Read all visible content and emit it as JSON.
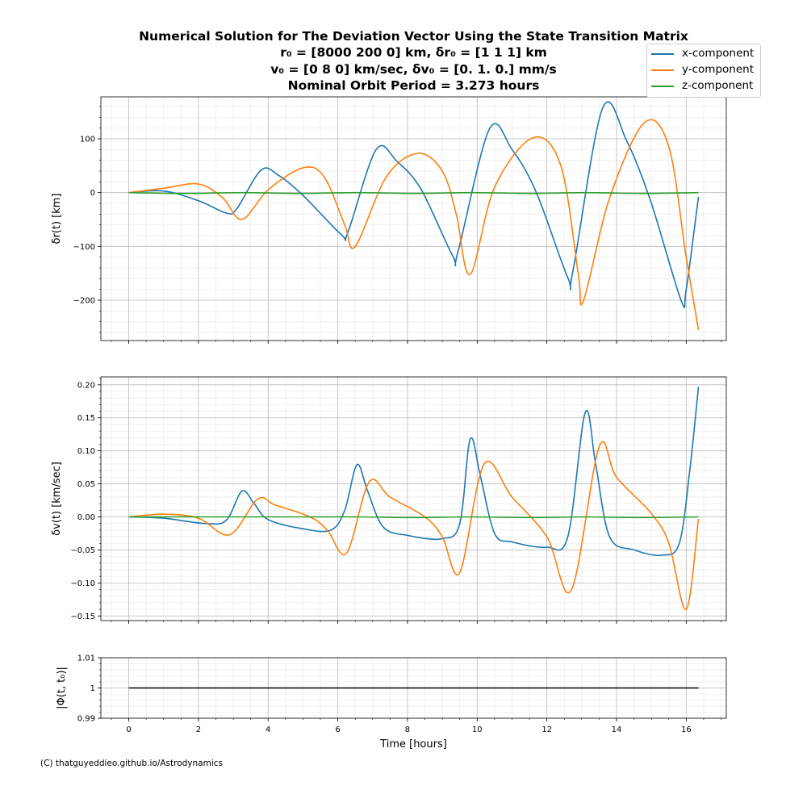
{
  "title_lines": [
    "Numerical Solution for The Deviation Vector Using the State Transition Matrix",
    "r₀ = [8000  200    0] km, δr₀ = [1 1 1] km",
    "v₀ = [0 8 0] km/sec, δv₀ = [0. 1. 0.] mm/s",
    "Nominal Orbit Period = 3.273 hours"
  ],
  "credit": "(C) thatguyeddieo.github.io/Astrodynamics",
  "legend": [
    {
      "label": "x-component",
      "color": "#1f77b4"
    },
    {
      "label": "y-component",
      "color": "#ff7f0e"
    },
    {
      "label": "z-component",
      "color": "#2ca02c"
    }
  ],
  "chart_data": [
    {
      "type": "line",
      "ylabel": "δr(t) [km]",
      "xlim": [
        -0.8,
        17.15
      ],
      "ylim": [
        -275,
        178
      ],
      "xticks": [
        0,
        2,
        4,
        6,
        8,
        10,
        12,
        14,
        16
      ],
      "yticks": [
        -200,
        -100,
        0,
        100
      ],
      "grid": true,
      "series": [
        {
          "name": "x-component",
          "color": "#1f77b4",
          "x": [
            0,
            1,
            2,
            2.8,
            3.1,
            3.8,
            4.3,
            5,
            6.1,
            6.3,
            7.1,
            7.7,
            8.4,
            9.3,
            9.45,
            10.35,
            11.0,
            11.7,
            12.6,
            12.75,
            13.6,
            14.3,
            15.0,
            15.85,
            16.0,
            16.35
          ],
          "y": [
            0,
            3,
            -15,
            -38,
            -30,
            42,
            32,
            -5,
            -78,
            -72,
            80,
            58,
            5,
            -118,
            -110,
            118,
            80,
            0,
            -158,
            -145,
            157,
            95,
            -20,
            -200,
            -180,
            -8
          ]
        },
        {
          "name": "y-component",
          "color": "#ff7f0e",
          "x": [
            0,
            1,
            2,
            2.7,
            3.25,
            4,
            5,
            5.6,
            6.2,
            6.5,
            7.4,
            8.3,
            9.0,
            9.4,
            9.8,
            10.5,
            11.6,
            12.4,
            12.9,
            13.05,
            13.8,
            14.8,
            15.5,
            16.0,
            16.35
          ],
          "y": [
            0,
            8,
            16,
            -10,
            -50,
            5,
            46,
            30,
            -60,
            -100,
            30,
            73,
            40,
            -40,
            -152,
            10,
            102,
            50,
            -150,
            -201,
            -10,
            130,
            85,
            -120,
            -255
          ]
        },
        {
          "name": "z-component",
          "color": "#2ca02c",
          "x": [
            0,
            1.6,
            3.27,
            4.9,
            6.55,
            8.2,
            9.82,
            11.5,
            13.1,
            14.7,
            16.35
          ],
          "y": [
            0,
            -1.5,
            0,
            -1.5,
            0,
            -1.5,
            0,
            -1.5,
            0,
            -1.5,
            0
          ]
        }
      ]
    },
    {
      "type": "line",
      "ylabel": "δv(t) [km/sec]",
      "xlim": [
        -0.8,
        17.15
      ],
      "ylim": [
        -0.157,
        0.212
      ],
      "xticks": [
        0,
        2,
        4,
        6,
        8,
        10,
        12,
        14,
        16
      ],
      "yticks": [
        -0.15,
        -0.1,
        -0.05,
        0.0,
        0.05,
        0.1,
        0.15,
        0.2
      ],
      "ytick_labels": [
        "−0.15",
        "−0.10",
        "−0.05",
        "0.00",
        "0.05",
        "0.10",
        "0.15",
        "0.20"
      ],
      "grid": true,
      "series": [
        {
          "name": "x-component",
          "color": "#1f77b4",
          "x": [
            0,
            1,
            2.2,
            2.8,
            3.25,
            3.6,
            4.0,
            5.0,
            5.8,
            6.2,
            6.55,
            6.85,
            7.3,
            8.0,
            9.0,
            9.5,
            9.8,
            10.1,
            10.5,
            11.0,
            12.0,
            12.6,
            13.1,
            13.4,
            13.8,
            14.5,
            15.3,
            15.8,
            16.1,
            16.35
          ],
          "y": [
            0,
            -0.002,
            -0.01,
            -0.005,
            0.039,
            0.02,
            -0.004,
            -0.018,
            -0.02,
            0.01,
            0.079,
            0.04,
            -0.015,
            -0.028,
            -0.033,
            -0.01,
            0.118,
            0.06,
            -0.025,
            -0.038,
            -0.046,
            -0.03,
            0.158,
            0.08,
            -0.03,
            -0.05,
            -0.058,
            -0.04,
            0.07,
            0.197
          ]
        },
        {
          "name": "y-component",
          "color": "#ff7f0e",
          "x": [
            0,
            1.0,
            2.0,
            2.9,
            3.7,
            4.2,
            5.2,
            5.7,
            6.25,
            6.9,
            7.5,
            8.5,
            9.0,
            9.5,
            10.2,
            11.0,
            12.0,
            12.7,
            13.5,
            14.0,
            15.0,
            15.5,
            16.0,
            16.35
          ],
          "y": [
            0,
            0.004,
            -0.002,
            -0.027,
            0.027,
            0.018,
            0.0,
            -0.02,
            -0.055,
            0.053,
            0.03,
            0.0,
            -0.03,
            -0.084,
            0.08,
            0.03,
            -0.03,
            -0.111,
            0.106,
            0.06,
            0.005,
            -0.04,
            -0.14,
            -0.003
          ]
        },
        {
          "name": "z-component",
          "color": "#2ca02c",
          "x": [
            0,
            1.6,
            3.27,
            4.9,
            6.55,
            8.2,
            9.82,
            11.5,
            13.1,
            14.7,
            16.35
          ],
          "y": [
            0,
            0,
            0,
            0,
            0,
            -0.001,
            0,
            -0.001,
            0,
            -0.001,
            0
          ]
        }
      ]
    },
    {
      "type": "line",
      "ylabel": "|Φ(t, t₀)|",
      "xlabel": "Time [hours]",
      "xlim": [
        -0.8,
        17.15
      ],
      "ylim": [
        0.99,
        1.01
      ],
      "xticks": [
        0,
        2,
        4,
        6,
        8,
        10,
        12,
        14,
        16
      ],
      "yticks": [
        0.99,
        1.0,
        1.01
      ],
      "grid": true,
      "series": [
        {
          "color": "#000000",
          "x": [
            0,
            16.35
          ],
          "y": [
            1.0,
            1.0
          ]
        }
      ]
    }
  ]
}
